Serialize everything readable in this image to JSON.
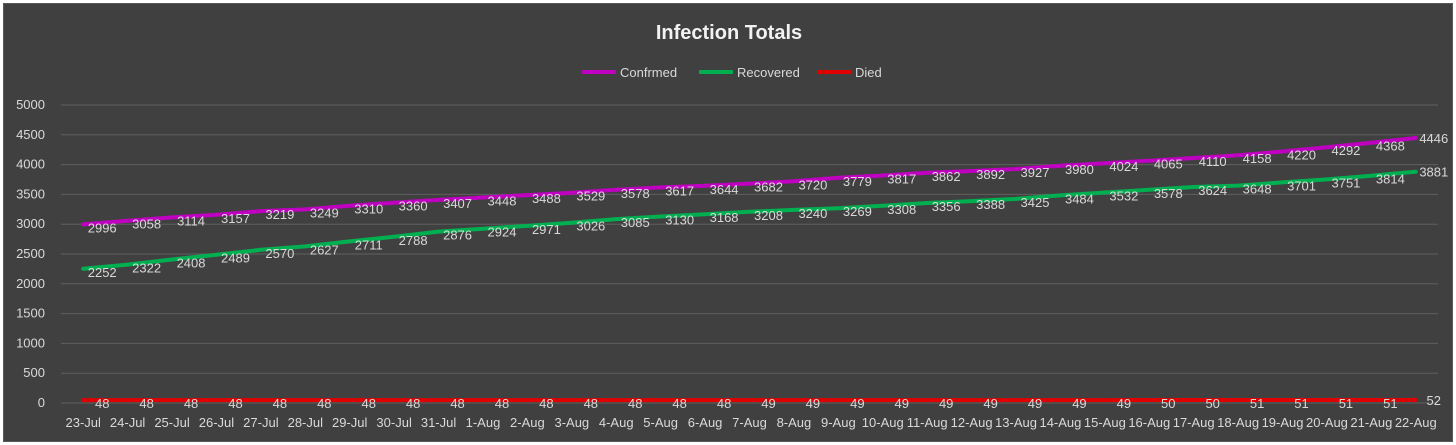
{
  "chart_data": {
    "type": "line",
    "title": "Infection Totals",
    "xlabel": "",
    "ylabel": "",
    "ylim": [
      0,
      5000
    ],
    "yticks": [
      "0",
      "500",
      "1000",
      "1500",
      "2000",
      "2500",
      "3000",
      "3500",
      "4000",
      "4500",
      "5000"
    ],
    "grid": true,
    "legend_position": "top-center",
    "categories": [
      "23-Jul",
      "24-Jul",
      "25-Jul",
      "26-Jul",
      "27-Jul",
      "28-Jul",
      "29-Jul",
      "30-Jul",
      "31-Jul",
      "1-Aug",
      "2-Aug",
      "3-Aug",
      "4-Aug",
      "5-Aug",
      "6-Aug",
      "7-Aug",
      "8-Aug",
      "9-Aug",
      "10-Aug",
      "11-Aug",
      "12-Aug",
      "13-Aug",
      "14-Aug",
      "15-Aug",
      "16-Aug",
      "17-Aug",
      "18-Aug",
      "19-Aug",
      "20-Aug",
      "21-Aug",
      "22-Aug"
    ],
    "series": [
      {
        "name": "Confrmed",
        "color": "#c000c0",
        "values": [
          2996,
          3058,
          3114,
          3157,
          3219,
          3249,
          3310,
          3360,
          3407,
          3448,
          3488,
          3529,
          3578,
          3617,
          3644,
          3682,
          3720,
          3779,
          3817,
          3862,
          3892,
          3927,
          3980,
          4024,
          4065,
          4110,
          4158,
          4220,
          4292,
          4368,
          4446
        ]
      },
      {
        "name": "Recovered",
        "color": "#00b050",
        "values": [
          2252,
          2322,
          2408,
          2489,
          2570,
          2627,
          2711,
          2788,
          2876,
          2924,
          2971,
          3026,
          3085,
          3130,
          3168,
          3208,
          3240,
          3269,
          3308,
          3356,
          3388,
          3425,
          3484,
          3532,
          3578,
          3624,
          3648,
          3701,
          3751,
          3814,
          3881
        ]
      },
      {
        "name": "Died",
        "color": "#e00000",
        "values": [
          48,
          48,
          48,
          48,
          48,
          48,
          48,
          48,
          48,
          48,
          48,
          48,
          48,
          48,
          48,
          49,
          49,
          49,
          49,
          49,
          49,
          49,
          49,
          49,
          50,
          50,
          51,
          51,
          51,
          51,
          52
        ]
      }
    ]
  }
}
